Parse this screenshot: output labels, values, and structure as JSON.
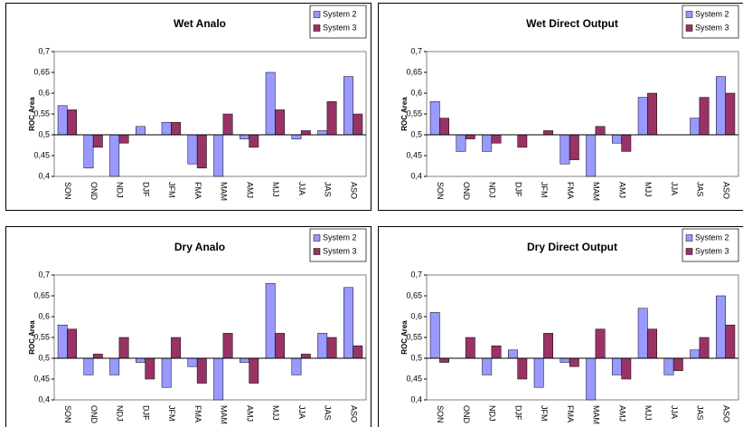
{
  "chart_data": [
    {
      "type": "bar",
      "title": "Wet Analo",
      "y_label": "ROC Area",
      "categories": [
        "SON",
        "OND",
        "NDJ",
        "DJF",
        "JFM",
        "FMA",
        "MAM",
        "AMJ",
        "MJJ",
        "JJA",
        "JAS",
        "ASO"
      ],
      "series": [
        {
          "name": "System 2",
          "color": "#9999ff",
          "values": [
            0.57,
            0.42,
            0.4,
            0.52,
            0.53,
            0.43,
            0.4,
            0.49,
            0.65,
            0.49,
            0.51,
            0.64
          ]
        },
        {
          "name": "System 3",
          "color": "#993366",
          "values": [
            0.56,
            0.47,
            0.48,
            0.5,
            0.53,
            0.42,
            0.55,
            0.47,
            0.56,
            0.51,
            0.58,
            0.55
          ]
        }
      ],
      "ylim": [
        0.4,
        0.7
      ],
      "bar_base": 0.5,
      "yticks": [
        {
          "value": 0.4,
          "label": "0,4"
        },
        {
          "value": 0.45,
          "label": "0,45"
        },
        {
          "value": 0.5,
          "label": "0,5"
        },
        {
          "value": 0.55,
          "label": "0,55"
        },
        {
          "value": 0.6,
          "label": "0,6"
        },
        {
          "value": 0.65,
          "label": "0,65"
        },
        {
          "value": 0.7,
          "label": "0,7"
        }
      ],
      "grid": false,
      "legend": "top-right"
    },
    {
      "type": "bar",
      "title": "Wet Direct Output",
      "y_label": "ROC Area",
      "categories": [
        "SON",
        "OND",
        "NDJ",
        "DJF",
        "JFM",
        "FMA",
        "MAM",
        "AMJ",
        "MJJ",
        "JJA",
        "JAS",
        "ASO"
      ],
      "series": [
        {
          "name": "System 2",
          "color": "#9999ff",
          "values": [
            0.58,
            0.46,
            0.46,
            0.5,
            0.5,
            0.43,
            0.4,
            0.48,
            0.59,
            0.5,
            0.54,
            0.64
          ]
        },
        {
          "name": "System 3",
          "color": "#993366",
          "values": [
            0.54,
            0.49,
            0.48,
            0.47,
            0.51,
            0.44,
            0.52,
            0.46,
            0.6,
            0.5,
            0.59,
            0.6
          ]
        }
      ],
      "ylim": [
        0.4,
        0.7
      ],
      "bar_base": 0.5,
      "yticks": [
        {
          "value": 0.4,
          "label": "0,4"
        },
        {
          "value": 0.45,
          "label": "0,45"
        },
        {
          "value": 0.5,
          "label": "0,5"
        },
        {
          "value": 0.55,
          "label": "0,55"
        },
        {
          "value": 0.6,
          "label": "0,6"
        },
        {
          "value": 0.65,
          "label": "0,65"
        },
        {
          "value": 0.7,
          "label": "0,7"
        }
      ],
      "grid": false,
      "legend": "top-right"
    },
    {
      "type": "bar",
      "title": "Dry Analo",
      "y_label": "ROC Area",
      "categories": [
        "SON",
        "OND",
        "NDJ",
        "DJF",
        "JFM",
        "FMA",
        "MAM",
        "AMJ",
        "MJJ",
        "JJA",
        "JAS",
        "ASO"
      ],
      "series": [
        {
          "name": "System 2",
          "color": "#9999ff",
          "values": [
            0.58,
            0.46,
            0.46,
            0.49,
            0.43,
            0.48,
            0.4,
            0.49,
            0.68,
            0.46,
            0.56,
            0.67
          ]
        },
        {
          "name": "System 3",
          "color": "#993366",
          "values": [
            0.57,
            0.51,
            0.55,
            0.45,
            0.55,
            0.44,
            0.56,
            0.44,
            0.56,
            0.51,
            0.55,
            0.53
          ]
        }
      ],
      "ylim": [
        0.4,
        0.7
      ],
      "bar_base": 0.5,
      "yticks": [
        {
          "value": 0.4,
          "label": "0,4"
        },
        {
          "value": 0.45,
          "label": "0,45"
        },
        {
          "value": 0.5,
          "label": "0,5"
        },
        {
          "value": 0.55,
          "label": "0,55"
        },
        {
          "value": 0.6,
          "label": "0,6"
        },
        {
          "value": 0.65,
          "label": "0,65"
        },
        {
          "value": 0.7,
          "label": "0,7"
        }
      ],
      "grid": false,
      "legend": "top-right"
    },
    {
      "type": "bar",
      "title": "Dry Direct Output",
      "y_label": "ROC Area",
      "categories": [
        "SON",
        "OND",
        "NDJ",
        "DJF",
        "JFM",
        "FMA",
        "MAM",
        "AMJ",
        "MJJ",
        "JJA",
        "JAS",
        "ASO"
      ],
      "series": [
        {
          "name": "System 2",
          "color": "#9999ff",
          "values": [
            0.61,
            0.5,
            0.46,
            0.52,
            0.43,
            0.49,
            0.4,
            0.46,
            0.62,
            0.46,
            0.52,
            0.65
          ]
        },
        {
          "name": "System 3",
          "color": "#993366",
          "values": [
            0.49,
            0.55,
            0.53,
            0.45,
            0.56,
            0.48,
            0.57,
            0.45,
            0.57,
            0.47,
            0.55,
            0.58
          ]
        }
      ],
      "ylim": [
        0.4,
        0.7
      ],
      "bar_base": 0.5,
      "yticks": [
        {
          "value": 0.4,
          "label": "0,4"
        },
        {
          "value": 0.45,
          "label": "0,45"
        },
        {
          "value": 0.5,
          "label": "0,5"
        },
        {
          "value": 0.55,
          "label": "0,55"
        },
        {
          "value": 0.6,
          "label": "0,6"
        },
        {
          "value": 0.65,
          "label": "0,65"
        },
        {
          "value": 0.7,
          "label": "0,7"
        }
      ],
      "grid": false,
      "legend": "top-right"
    }
  ]
}
